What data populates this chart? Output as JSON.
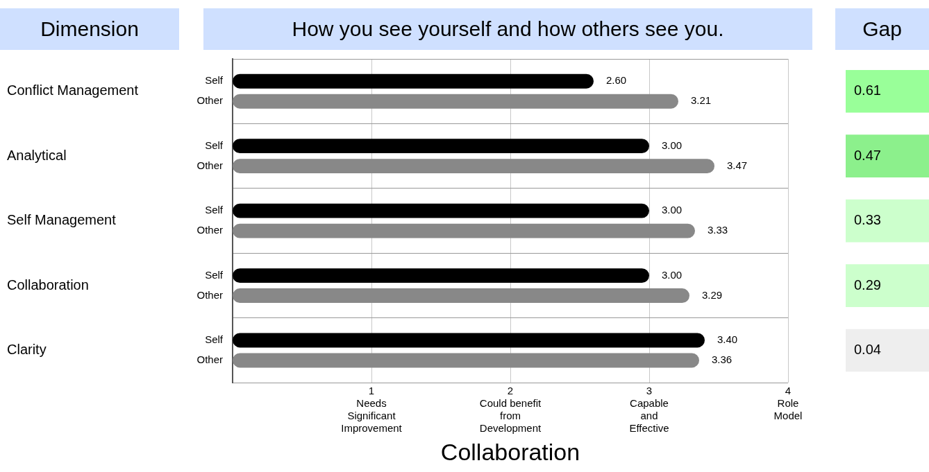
{
  "chart_data": [
    {
      "type": "bar",
      "orientation": "horizontal",
      "title": "How you see yourself and how others see you.",
      "ylabel": "Dimension",
      "xlabel": "Collaboration",
      "categories": [
        "Conflict Management",
        "Analytical",
        "Self Management",
        "Collaboration",
        "Clarity"
      ],
      "series": [
        {
          "name": "Self",
          "color": "#000000",
          "values": [
            2.6,
            3.0,
            3.0,
            3.0,
            3.4
          ],
          "value_labels": [
            "2.60",
            "3.00",
            "3.00",
            "3.00",
            "3.40"
          ]
        },
        {
          "name": "Other",
          "color": "#888888",
          "values": [
            3.21,
            3.47,
            3.33,
            3.29,
            3.36
          ],
          "value_labels": [
            "3.21",
            "3.47",
            "3.33",
            "3.29",
            "3.36"
          ]
        }
      ],
      "xlim": [
        0,
        4
      ],
      "xticks": [
        {
          "value": 1,
          "label": "1\nNeeds\nSignificant\nImprovement"
        },
        {
          "value": 2,
          "label": "2\nCould benefit\nfrom\nDevelopment"
        },
        {
          "value": 3,
          "label": "3\nCapable\nand\nEffective"
        },
        {
          "value": 4,
          "label": "4\nRole\nModel"
        }
      ],
      "grid": true
    },
    {
      "type": "heatmap",
      "title": "Gap",
      "categories": [
        null
      ],
      "y_categories": [
        null,
        null,
        null,
        null,
        null
      ],
      "cells": [
        [
          0.61
        ],
        [
          0.47
        ],
        [
          0.33
        ],
        [
          0.29
        ],
        [
          0.04
        ]
      ],
      "colors": [
        "#99ff99",
        "#8cf08c",
        "#ccffcc",
        "#ccffcc",
        "#eeeeee"
      ],
      "data_labels": true,
      "tick_labels": false
    }
  ]
}
